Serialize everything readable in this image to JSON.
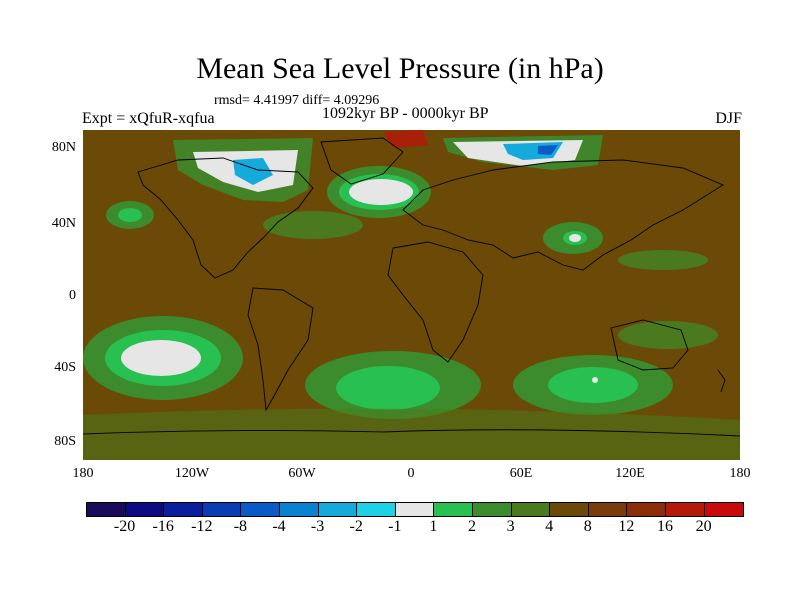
{
  "title": "Mean Sea Level Pressure (in hPa)",
  "stats": "rmsd= 4.41997 diff= 4.09296",
  "experiment": "Expt = xQfuR-xqfua",
  "period": "1092kyr BP - 0000kyr BP",
  "season": "DJF",
  "y_ticks": [
    "80N",
    "40N",
    "0",
    "40S",
    "80S"
  ],
  "x_ticks": [
    "180",
    "120W",
    "60W",
    "0",
    "60E",
    "120E",
    "180"
  ],
  "colorbar": {
    "labels": [
      "-20",
      "-16",
      "-12",
      "-8",
      "-4",
      "-3",
      "-2",
      "-1",
      "1",
      "2",
      "3",
      "4",
      "8",
      "12",
      "16",
      "20"
    ],
    "colors": [
      "#1a0a5a",
      "#0a0a82",
      "#0a1e9e",
      "#0a3cb4",
      "#0a5ac8",
      "#0a82d2",
      "#14aadc",
      "#1ed2e6",
      "#e6e6e6",
      "#28c050",
      "#3c8c2d",
      "#4b7a1e",
      "#6a4a06",
      "#7a3c0a",
      "#8c2d0a",
      "#b4190a",
      "#c80a0a"
    ]
  },
  "colors": {
    "background_field": "#6a4a06",
    "coast": "#000000"
  }
}
